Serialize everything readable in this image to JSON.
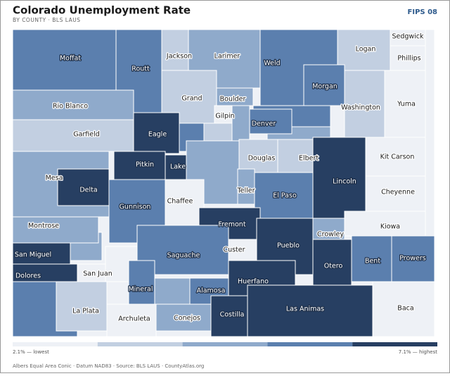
{
  "header": {
    "title": "Colorado Unemployment Rate",
    "subtitle": "BY COUNTY · BLS LAUS",
    "code": "FIPS 08"
  },
  "map": {
    "counties": [
      {
        "name": "Moffat",
        "color": "#5b7fae"
      },
      {
        "name": "Routt",
        "color": "#5b7fae"
      },
      {
        "name": "Jackson",
        "color": "#c2cfe1"
      },
      {
        "name": "Larimer",
        "color": "#8faacb"
      },
      {
        "name": "Weld",
        "color": "#5b7fae"
      },
      {
        "name": "Logan",
        "color": "#c2cfe1"
      },
      {
        "name": "Sedgwick",
        "color": "#eef1f6"
      },
      {
        "name": "Phillips",
        "color": "#eef1f6"
      },
      {
        "name": "Morgan",
        "color": "#5b7fae"
      },
      {
        "name": "Washington",
        "color": "#c2cfe1"
      },
      {
        "name": "Yuma",
        "color": "#eef1f6"
      },
      {
        "name": "Rio Blanco",
        "color": "#8faacb"
      },
      {
        "name": "Garfield",
        "color": "#c2cfe1"
      },
      {
        "name": "Grand",
        "color": "#c2cfe1"
      },
      {
        "name": "Boulder",
        "color": "#8faacb"
      },
      {
        "name": "Gilpin",
        "color": "#eef1f6"
      },
      {
        "name": "Denver",
        "color": "#5b7fae"
      },
      {
        "name": "Eagle",
        "color": "#273f62"
      },
      {
        "name": "Douglas",
        "color": "#c2cfe1"
      },
      {
        "name": "Elbert",
        "color": "#c2cfe1"
      },
      {
        "name": "Kit Carson",
        "color": "#eef1f6"
      },
      {
        "name": "Lincoln",
        "color": "#273f62"
      },
      {
        "name": "Mesa",
        "color": "#8faacb"
      },
      {
        "name": "Delta",
        "color": "#273f62"
      },
      {
        "name": "Pitkin",
        "color": "#273f62"
      },
      {
        "name": "Lake",
        "color": "#273f62"
      },
      {
        "name": "Teller",
        "color": "#8faacb"
      },
      {
        "name": "El Paso",
        "color": "#5b7fae"
      },
      {
        "name": "Cheyenne",
        "color": "#eef1f6"
      },
      {
        "name": "Gunnison",
        "color": "#5b7fae"
      },
      {
        "name": "Chaffee",
        "color": "#eef1f6"
      },
      {
        "name": "Fremont",
        "color": "#273f62"
      },
      {
        "name": "Kiowa",
        "color": "#eef1f6"
      },
      {
        "name": "Montrose",
        "color": "#8faacb"
      },
      {
        "name": "Crowley",
        "color": "#8faacb"
      },
      {
        "name": "Custer",
        "color": "#eef1f6"
      },
      {
        "name": "Pueblo",
        "color": "#273f62"
      },
      {
        "name": "Saguache",
        "color": "#5b7fae"
      },
      {
        "name": "San Miguel",
        "color": "#273f62"
      },
      {
        "name": "Otero",
        "color": "#273f62"
      },
      {
        "name": "Bent",
        "color": "#5b7fae"
      },
      {
        "name": "Prowers",
        "color": "#5b7fae"
      },
      {
        "name": "Dolores",
        "color": "#273f62"
      },
      {
        "name": "San Juan",
        "color": "#eef1f6"
      },
      {
        "name": "Mineral",
        "color": "#5b7fae"
      },
      {
        "name": "Huerfano",
        "color": "#273f62"
      },
      {
        "name": "Alamosa",
        "color": "#5b7fae"
      },
      {
        "name": "La Plata",
        "color": "#c2cfe1"
      },
      {
        "name": "Archuleta",
        "color": "#eef1f6"
      },
      {
        "name": "Conejos",
        "color": "#8faacb"
      },
      {
        "name": "Costilla",
        "color": "#273f62"
      },
      {
        "name": "Las Animas",
        "color": "#273f62"
      },
      {
        "name": "Baca",
        "color": "#eef1f6"
      }
    ]
  },
  "legend": {
    "colors": [
      "#eef1f6",
      "#c2cfe1",
      "#8faacb",
      "#5b7fae",
      "#273f62"
    ],
    "low": "2.1% — lowest",
    "high": "7.1% — highest"
  },
  "footer": "Albers Equal Area Conic · Datum NAD83 · Source: BLS LAUS · CountyAtlas.org"
}
